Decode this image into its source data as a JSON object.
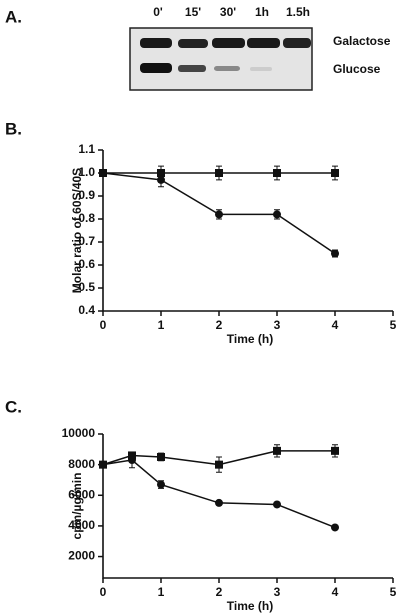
{
  "gel": {
    "label": "A.",
    "lanes": [
      "0'",
      "15'",
      "30'",
      "1h",
      "1.5h"
    ],
    "rows": [
      "Galactose",
      "Glucose"
    ]
  },
  "chart_data": [
    {
      "type": "line",
      "label": "B.",
      "xlabel": "Time (h)",
      "ylabel": "Molar ratio of 60S/40S",
      "xlim": [
        0,
        5
      ],
      "xticks": [
        0,
        1,
        2,
        3,
        4,
        5
      ],
      "ylim": [
        0.4,
        1.1
      ],
      "yticks": [
        0.4,
        0.5,
        0.6,
        0.7,
        0.8,
        0.9,
        {
          "value": 1,
          "label": "1.0"
        },
        1.1
      ],
      "series": [
        {
          "marker": "square",
          "color": "#111",
          "x": [
            0,
            1,
            2,
            3,
            4
          ],
          "values": [
            1,
            1,
            1,
            1,
            1
          ],
          "errors": [
            0.01,
            0.03,
            0.03,
            0.03,
            0.03
          ]
        },
        {
          "marker": "circle",
          "color": "#111",
          "x": [
            0,
            1,
            2,
            3,
            4
          ],
          "values": [
            1,
            0.97,
            0.82,
            0.82,
            0.65
          ],
          "errors": [
            0.01,
            0.03,
            0.02,
            0.02,
            0.015
          ]
        }
      ]
    },
    {
      "type": "line",
      "label": "C.",
      "xlabel": "Time (h)",
      "ylabel": "cpm/µg/min",
      "xlim": [
        0,
        5
      ],
      "xticks": [
        0,
        1,
        2,
        3,
        4,
        5
      ],
      "ylim": [
        600,
        10000
      ],
      "yticks": [
        2000,
        4000,
        6000,
        8000,
        10000
      ],
      "series": [
        {
          "marker": "square",
          "color": "#111",
          "x": [
            0,
            0.5,
            1,
            2,
            3,
            4
          ],
          "values": [
            8000,
            8600,
            8500,
            8000,
            8900,
            8900
          ],
          "errors": [
            200,
            200,
            250,
            500,
            400,
            400
          ]
        },
        {
          "marker": "circle",
          "color": "#111",
          "x": [
            0,
            0.5,
            1,
            2,
            3,
            4
          ],
          "values": [
            8000,
            8300,
            6700,
            5500,
            5400,
            3900
          ],
          "errors": [
            200,
            500,
            250,
            100,
            150,
            80
          ]
        }
      ]
    }
  ]
}
